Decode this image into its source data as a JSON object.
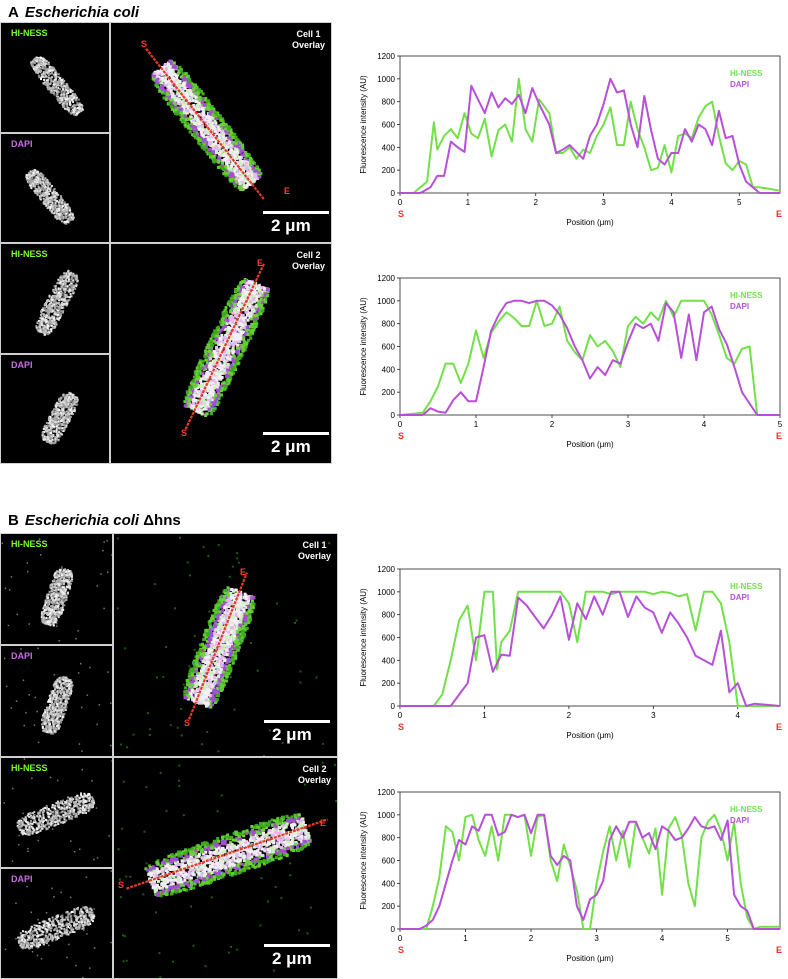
{
  "colors": {
    "hiness": "#73e04a",
    "dapi": "#b84fd9",
    "endpoint": "#e8322a",
    "track": "#e83a24"
  },
  "sections": [
    {
      "letter": "A",
      "organism": "Escherichia coli",
      "mutation": ""
    },
    {
      "letter": "B",
      "organism": "Escherichia coli",
      "mutation": "Δhns"
    }
  ],
  "panels": {
    "hiness_label": "HI-NESS",
    "dapi_label": "DAPI",
    "cells": [
      {
        "title": "Cell 1",
        "subtitle": "Overlay",
        "scale": "2 μm",
        "start": "S",
        "end": "E"
      },
      {
        "title": "Cell 2",
        "subtitle": "Overlay",
        "scale": "2 μm",
        "start": "S",
        "end": "E"
      },
      {
        "title": "Cell 1",
        "subtitle": "Overlay",
        "scale": "2 μm",
        "start": "S",
        "end": "E"
      },
      {
        "title": "Cell 2",
        "subtitle": "Overlay",
        "scale": "2 μm",
        "start": "S",
        "end": "E"
      }
    ]
  },
  "chart_data": [
    {
      "type": "line",
      "title": "",
      "xlabel": "Position (μm)",
      "ylabel": "Fluorescence intensity (AU)",
      "xlim": [
        0,
        5.6
      ],
      "ylim": [
        0,
        1200
      ],
      "xticks": [
        0,
        1,
        2,
        3,
        4,
        5
      ],
      "yticks": [
        0,
        200,
        400,
        600,
        800,
        1000,
        1200
      ],
      "start_label": "S",
      "end_label": "E",
      "legend": "top-right",
      "series": [
        {
          "name": "HI-NESS",
          "x": [
            0,
            0.2,
            0.4,
            0.5,
            0.55,
            0.65,
            0.75,
            0.85,
            0.95,
            1.05,
            1.15,
            1.25,
            1.35,
            1.45,
            1.55,
            1.65,
            1.75,
            1.85,
            1.95,
            2.05,
            2.2,
            2.3,
            2.4,
            2.5,
            2.6,
            2.7,
            2.8,
            2.9,
            3.0,
            3.1,
            3.2,
            3.3,
            3.4,
            3.5,
            3.6,
            3.7,
            3.8,
            3.9,
            4.0,
            4.1,
            4.2,
            4.3,
            4.4,
            4.5,
            4.6,
            4.7,
            4.8,
            4.9,
            5.0,
            5.1,
            5.2,
            5.3,
            5.6
          ],
          "y": [
            0,
            0,
            100,
            620,
            380,
            500,
            560,
            480,
            700,
            520,
            480,
            650,
            320,
            550,
            600,
            450,
            1000,
            560,
            450,
            820,
            700,
            350,
            350,
            400,
            300,
            380,
            350,
            500,
            600,
            750,
            420,
            420,
            800,
            560,
            400,
            200,
            220,
            420,
            180,
            500,
            520,
            480,
            660,
            760,
            800,
            500,
            260,
            200,
            280,
            250,
            50,
            50,
            20
          ]
        },
        {
          "name": "DAPI",
          "x": [
            0,
            0.3,
            0.45,
            0.55,
            0.65,
            0.75,
            0.85,
            0.95,
            1.05,
            1.15,
            1.25,
            1.35,
            1.45,
            1.55,
            1.65,
            1.75,
            1.85,
            1.95,
            2.05,
            2.2,
            2.3,
            2.4,
            2.5,
            2.6,
            2.7,
            2.8,
            2.9,
            3.0,
            3.1,
            3.2,
            3.3,
            3.4,
            3.5,
            3.6,
            3.7,
            3.8,
            3.9,
            4.0,
            4.1,
            4.2,
            4.3,
            4.4,
            4.5,
            4.6,
            4.7,
            4.8,
            4.9,
            5.0,
            5.1,
            5.2,
            5.3,
            5.6
          ],
          "y": [
            0,
            0,
            50,
            150,
            150,
            450,
            400,
            360,
            940,
            820,
            700,
            880,
            750,
            830,
            780,
            860,
            700,
            920,
            780,
            600,
            350,
            380,
            420,
            360,
            300,
            500,
            600,
            780,
            1000,
            880,
            900,
            600,
            400,
            850,
            550,
            300,
            250,
            350,
            350,
            560,
            450,
            600,
            560,
            420,
            720,
            480,
            500,
            250,
            100,
            50,
            0,
            0
          ]
        }
      ]
    },
    {
      "type": "line",
      "title": "",
      "xlabel": "Position (μm)",
      "ylabel": "Fluorescence intensity (AU)",
      "xlim": [
        0,
        5
      ],
      "ylim": [
        0,
        1200
      ],
      "xticks": [
        0,
        1,
        2,
        3,
        4,
        5
      ],
      "yticks": [
        0,
        200,
        400,
        600,
        800,
        1000,
        1200
      ],
      "start_label": "S",
      "end_label": "E",
      "legend": "top-right",
      "series": [
        {
          "name": "HI-NESS",
          "x": [
            0,
            0.3,
            0.4,
            0.5,
            0.6,
            0.7,
            0.8,
            0.9,
            1.0,
            1.1,
            1.2,
            1.3,
            1.4,
            1.5,
            1.6,
            1.7,
            1.8,
            1.9,
            2.0,
            2.1,
            2.2,
            2.3,
            2.4,
            2.5,
            2.6,
            2.7,
            2.8,
            2.9,
            3.0,
            3.1,
            3.2,
            3.3,
            3.4,
            3.5,
            3.6,
            3.7,
            3.8,
            3.9,
            4.0,
            4.1,
            4.2,
            4.3,
            4.4,
            4.5,
            4.6,
            4.7,
            5.0
          ],
          "y": [
            0,
            20,
            120,
            250,
            450,
            450,
            280,
            450,
            740,
            500,
            720,
            820,
            900,
            850,
            780,
            780,
            1000,
            780,
            800,
            950,
            650,
            550,
            480,
            700,
            600,
            650,
            560,
            420,
            780,
            860,
            800,
            900,
            830,
            1000,
            860,
            1000,
            1000,
            1000,
            1000,
            880,
            700,
            500,
            450,
            580,
            600,
            0,
            0
          ]
        },
        {
          "name": "DAPI",
          "x": [
            0,
            0.3,
            0.4,
            0.5,
            0.6,
            0.7,
            0.8,
            0.9,
            1.0,
            1.1,
            1.2,
            1.3,
            1.4,
            1.5,
            1.6,
            1.7,
            1.8,
            1.9,
            2.0,
            2.1,
            2.2,
            2.3,
            2.4,
            2.5,
            2.6,
            2.7,
            2.8,
            2.9,
            3.0,
            3.1,
            3.2,
            3.3,
            3.4,
            3.5,
            3.6,
            3.7,
            3.8,
            3.9,
            4.0,
            4.1,
            4.2,
            4.3,
            4.4,
            4.5,
            4.6,
            4.7,
            5.0
          ],
          "y": [
            0,
            0,
            60,
            30,
            20,
            130,
            200,
            120,
            120,
            420,
            740,
            880,
            980,
            1000,
            1000,
            980,
            1000,
            1000,
            960,
            880,
            760,
            600,
            480,
            320,
            420,
            350,
            480,
            450,
            640,
            800,
            760,
            800,
            650,
            980,
            900,
            500,
            880,
            480,
            900,
            950,
            750,
            620,
            420,
            200,
            100,
            0,
            0
          ]
        }
      ]
    },
    {
      "type": "line",
      "title": "",
      "xlabel": "Position (μm)",
      "ylabel": "Fluorescence intensity (AU)",
      "xlim": [
        0,
        4.5
      ],
      "ylim": [
        0,
        1200
      ],
      "xticks": [
        0,
        1,
        2,
        3,
        4
      ],
      "yticks": [
        0,
        200,
        400,
        600,
        800,
        1000,
        1200
      ],
      "start_label": "S",
      "end_label": "E",
      "legend": "top-right",
      "series": [
        {
          "name": "HI-NESS",
          "x": [
            0,
            0.4,
            0.5,
            0.6,
            0.7,
            0.8,
            0.9,
            1.0,
            1.1,
            1.15,
            1.2,
            1.3,
            1.4,
            1.5,
            1.6,
            1.7,
            1.8,
            1.9,
            2.0,
            2.1,
            2.2,
            2.3,
            2.4,
            2.5,
            2.6,
            2.7,
            2.8,
            2.9,
            3.0,
            3.1,
            3.2,
            3.3,
            3.4,
            3.5,
            3.6,
            3.7,
            3.8,
            3.9,
            4.0,
            4.5
          ],
          "y": [
            0,
            0,
            100,
            400,
            750,
            880,
            400,
            1000,
            1000,
            320,
            560,
            660,
            1000,
            1000,
            1000,
            1000,
            1000,
            1000,
            900,
            560,
            1000,
            1000,
            1000,
            980,
            1000,
            1000,
            1000,
            1000,
            980,
            1000,
            990,
            960,
            980,
            660,
            1000,
            1000,
            900,
            560,
            0,
            0
          ]
        },
        {
          "name": "DAPI",
          "x": [
            0,
            0.6,
            0.7,
            0.8,
            0.9,
            1.0,
            1.1,
            1.2,
            1.3,
            1.4,
            1.5,
            1.6,
            1.7,
            1.8,
            1.9,
            2.0,
            2.1,
            2.2,
            2.3,
            2.4,
            2.5,
            2.6,
            2.7,
            2.8,
            2.9,
            3.0,
            3.1,
            3.2,
            3.3,
            3.4,
            3.5,
            3.6,
            3.7,
            3.8,
            3.9,
            4.0,
            4.1,
            4.2,
            4.5
          ],
          "y": [
            0,
            0,
            100,
            200,
            600,
            620,
            300,
            450,
            440,
            950,
            880,
            780,
            680,
            800,
            960,
            580,
            900,
            760,
            960,
            800,
            1000,
            1000,
            780,
            960,
            860,
            820,
            640,
            820,
            720,
            600,
            440,
            400,
            360,
            660,
            120,
            200,
            0,
            20,
            0
          ]
        }
      ]
    },
    {
      "type": "line",
      "title": "",
      "xlabel": "Position (μm)",
      "ylabel": "Fluorescence intensity (AU)",
      "xlim": [
        0,
        5.8
      ],
      "ylim": [
        0,
        1200
      ],
      "xticks": [
        0,
        1,
        2,
        3,
        4,
        5
      ],
      "yticks": [
        0,
        200,
        400,
        600,
        800,
        1000,
        1200
      ],
      "start_label": "S",
      "end_label": "E",
      "legend": "top-right",
      "series": [
        {
          "name": "HI-NESS",
          "x": [
            0,
            0.4,
            0.5,
            0.6,
            0.7,
            0.8,
            0.9,
            1.0,
            1.1,
            1.2,
            1.3,
            1.4,
            1.5,
            1.6,
            1.7,
            1.8,
            1.9,
            2.0,
            2.1,
            2.2,
            2.3,
            2.4,
            2.5,
            2.6,
            2.7,
            2.8,
            2.9,
            3.0,
            3.1,
            3.2,
            3.3,
            3.4,
            3.5,
            3.6,
            3.7,
            3.8,
            3.9,
            4.0,
            4.1,
            4.2,
            4.3,
            4.4,
            4.5,
            4.6,
            4.7,
            4.8,
            4.9,
            5.0,
            5.1,
            5.2,
            5.3,
            5.4,
            5.5,
            5.8
          ],
          "y": [
            0,
            0,
            200,
            450,
            900,
            850,
            600,
            980,
            1000,
            780,
            640,
            900,
            600,
            1000,
            1000,
            980,
            1000,
            640,
            980,
            1000,
            600,
            420,
            740,
            550,
            340,
            0,
            0,
            400,
            680,
            900,
            600,
            860,
            540,
            940,
            800,
            660,
            880,
            300,
            880,
            980,
            820,
            400,
            200,
            800,
            940,
            1000,
            860,
            600,
            940,
            400,
            100,
            0,
            20,
            20
          ]
        },
        {
          "name": "DAPI",
          "x": [
            0,
            0.3,
            0.4,
            0.5,
            0.6,
            0.7,
            0.8,
            0.9,
            1.0,
            1.1,
            1.2,
            1.3,
            1.4,
            1.5,
            1.6,
            1.7,
            1.8,
            1.9,
            2.0,
            2.1,
            2.2,
            2.3,
            2.4,
            2.5,
            2.6,
            2.7,
            2.8,
            2.9,
            3.0,
            3.1,
            3.2,
            3.3,
            3.4,
            3.5,
            3.6,
            3.7,
            3.8,
            3.9,
            4.0,
            4.1,
            4.2,
            4.3,
            4.4,
            4.5,
            4.6,
            4.7,
            4.8,
            4.9,
            5.0,
            5.1,
            5.2,
            5.3,
            5.4,
            5.8
          ],
          "y": [
            0,
            0,
            30,
            80,
            200,
            400,
            600,
            780,
            740,
            900,
            860,
            1000,
            1000,
            820,
            850,
            1000,
            980,
            1000,
            840,
            1000,
            1000,
            640,
            560,
            640,
            600,
            200,
            80,
            260,
            300,
            420,
            780,
            900,
            800,
            940,
            940,
            800,
            840,
            700,
            900,
            860,
            780,
            800,
            880,
            980,
            900,
            880,
            900,
            780,
            950,
            300,
            200,
            160,
            0,
            0
          ]
        }
      ]
    }
  ]
}
